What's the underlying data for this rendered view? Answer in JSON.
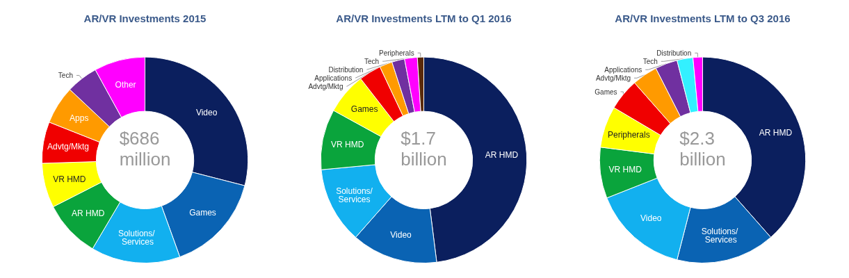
{
  "chart_data": [
    {
      "type": "donut",
      "title": "AR/VR Investments 2015",
      "categories": [
        "Video",
        "Games",
        "Solutions/ Services",
        "AR HMD",
        "VR HMD",
        "Advtg/Mktg",
        "Apps",
        "Tech",
        "Other"
      ],
      "values": [
        29,
        15.5,
        14,
        9,
        7,
        6.5,
        6,
        5,
        8
      ],
      "colors": [
        "#0b1f5e",
        "#0a63b3",
        "#12b0ef",
        "#0aa43c",
        "#ffff00",
        "#f00000",
        "#ff9a00",
        "#7030a0",
        "#ff00ff"
      ],
      "annotations": [
        "$686 million"
      ],
      "legend": false
    },
    {
      "type": "donut",
      "title": "AR/VR Investments LTM to Q1 2016",
      "categories": [
        "AR HMD",
        "Video",
        "Solutions/Services",
        "VR HMD",
        "Games",
        "Advtg/Mktg",
        "Applications",
        "Distribution",
        "Tech",
        "Peripherals"
      ],
      "values": [
        48,
        13.5,
        12,
        9.5,
        6.5,
        3.5,
        2,
        2,
        2,
        1
      ],
      "colors": [
        "#0b1f5e",
        "#0a63b3",
        "#12b0ef",
        "#0aa43c",
        "#ffff00",
        "#f00000",
        "#ff9a00",
        "#7030a0",
        "#ff00ff",
        "#5a2a0a"
      ],
      "annotations": [
        "$1.7 billion"
      ],
      "legend": false
    },
    {
      "type": "donut",
      "title": "AR/VR Investments LTM to Q3 2016",
      "categories": [
        "AR HMD",
        "Solutions/ Services",
        "Video",
        "VR HMD",
        "Peripherals",
        "Games",
        "Advtg/Mktg",
        "Applications",
        "Tech",
        "Distribution"
      ],
      "values": [
        38.5,
        15.5,
        15,
        8,
        6.5,
        5,
        4,
        3.5,
        2.5,
        1.5
      ],
      "colors": [
        "#0b1f5e",
        "#0a63b3",
        "#12b0ef",
        "#0aa43c",
        "#ffff00",
        "#f00000",
        "#ff9a00",
        "#7030a0",
        "#33f0ff",
        "#ff00ff"
      ],
      "annotations": [
        "$2.3 billion"
      ],
      "legend": false
    }
  ]
}
